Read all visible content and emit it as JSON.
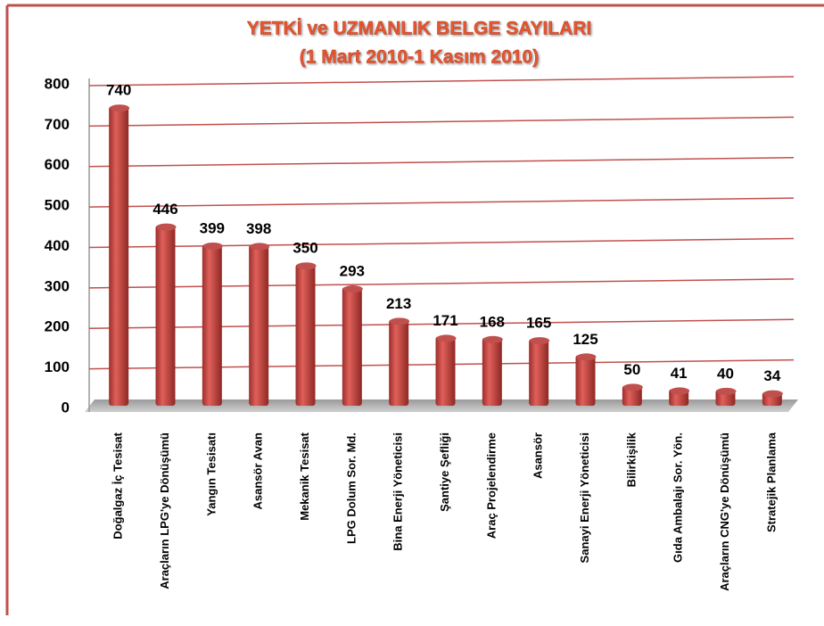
{
  "chart_data": {
    "type": "bar",
    "title": "YETKİ ve UZMANLIK BELGE SAYILARI",
    "subtitle": "(1 Mart 2010-1 Kasım 2010)",
    "categories": [
      "Doğalgaz İç Tesisat",
      "Araçların LPG'ye Dönüşümü",
      "Yangın Tesisatı",
      "Asansör Avan",
      "Mekanik Tesisat",
      "LPG Dolum Sor. Md.",
      "Bina Enerji Yöneticisi",
      "Şantiye Şefliği",
      "Araç Projelendirme",
      "Asansör",
      "Sanayi Enerji Yöneticisi",
      "Bilirkişilik",
      "Gıda Ambalajı Sor. Yön.",
      "Araçların CNG'ye Dönüşümü",
      "Stratejik Planlama"
    ],
    "values": [
      740,
      446,
      399,
      398,
      350,
      293,
      213,
      171,
      168,
      165,
      125,
      50,
      41,
      40,
      34
    ],
    "color": "#c0504d",
    "ylim": [
      0,
      800
    ],
    "yticks": [
      0,
      100,
      200,
      300,
      400,
      500,
      600,
      700,
      800
    ],
    "grid": true
  }
}
